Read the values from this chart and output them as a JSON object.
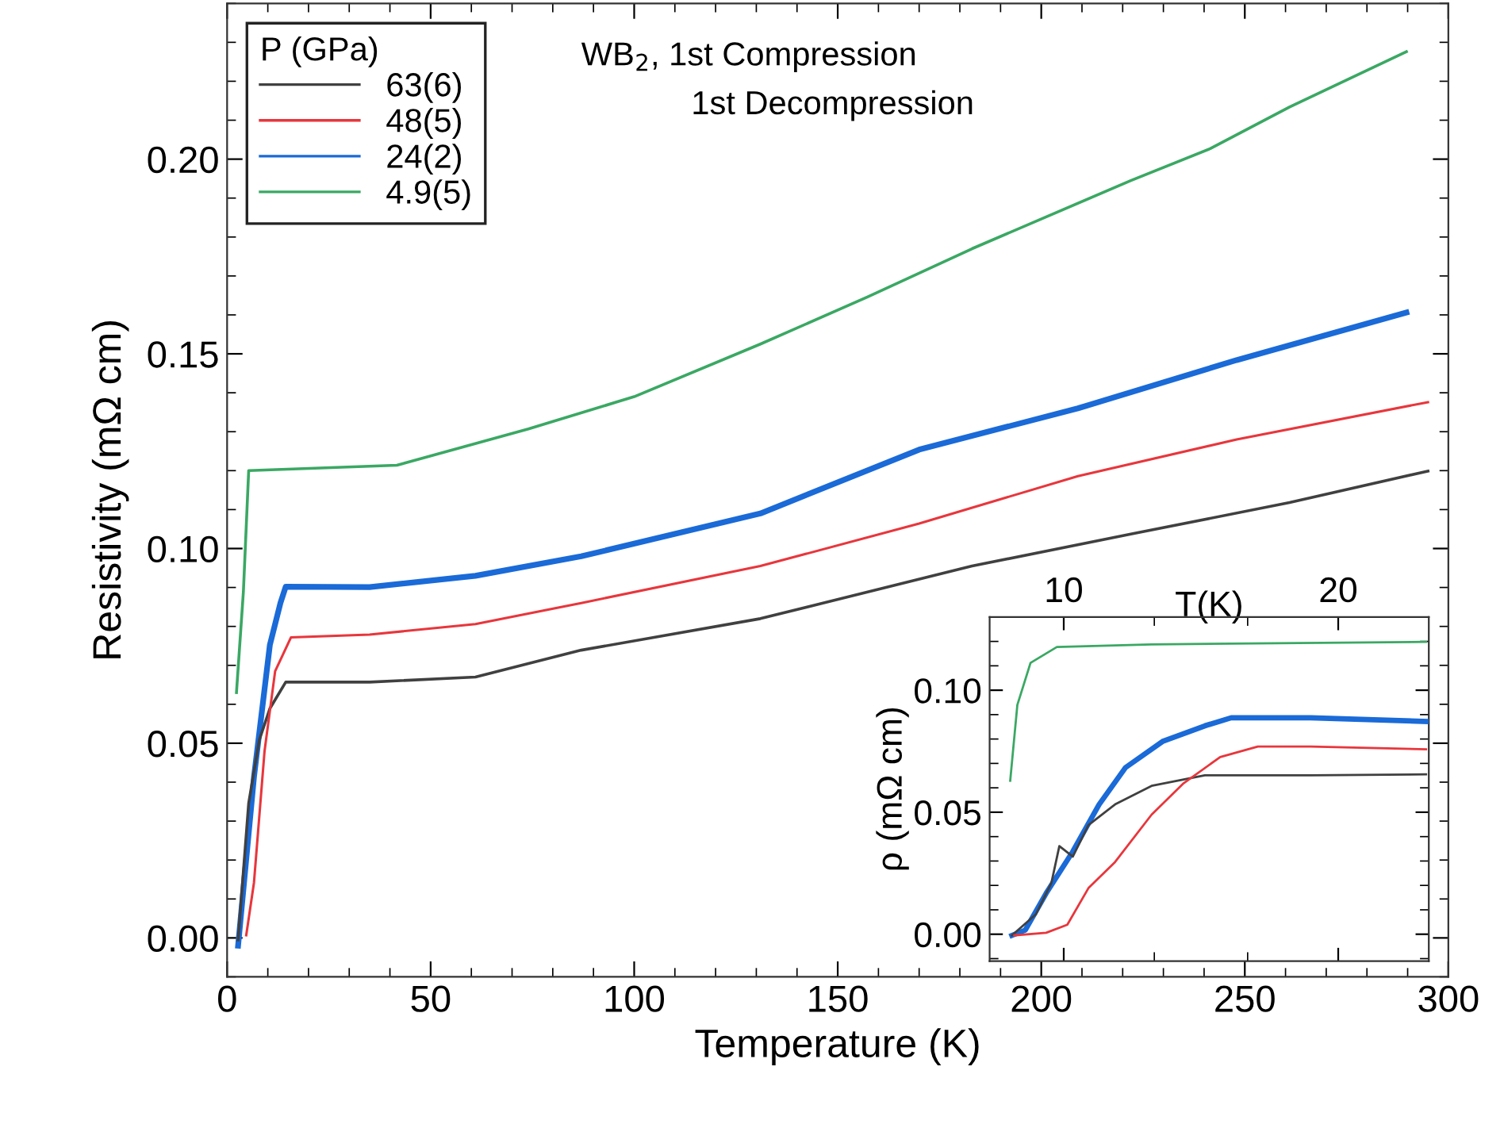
{
  "chart_data": [
    {
      "type": "line",
      "xlabel": "Temperature (K)",
      "ylabel": "Resistivity (mΩ cm)",
      "legend_title": "P (GPa)",
      "legend": "top left",
      "grid": false,
      "line_style": "solid",
      "marker": "none",
      "annotations": [
        "WB$_{2}$, 1st Compression",
        "1st Decompression"
      ],
      "xlim": [
        0,
        300
      ],
      "ylim": [
        -0.01,
        0.24
      ],
      "xticks": [
        0,
        {
          "value": 10,
          "label": null
        },
        {
          "value": 20,
          "label": null
        },
        {
          "value": 30,
          "label": null
        },
        {
          "value": 40,
          "label": null
        },
        50,
        {
          "value": 60,
          "label": null
        },
        {
          "value": 70,
          "label": null
        },
        {
          "value": 80,
          "label": null
        },
        {
          "value": 90,
          "label": null
        },
        100,
        {
          "value": 110,
          "label": null
        },
        {
          "value": 120,
          "label": null
        },
        {
          "value": 130,
          "label": null
        },
        {
          "value": 140,
          "label": null
        },
        150,
        {
          "value": 160,
          "label": null
        },
        {
          "value": 170,
          "label": null
        },
        {
          "value": 180,
          "label": null
        },
        {
          "value": 190,
          "label": null
        },
        200,
        {
          "value": 210,
          "label": null
        },
        {
          "value": 220,
          "label": null
        },
        {
          "value": 230,
          "label": null
        },
        {
          "value": 240,
          "label": null
        },
        250,
        {
          "value": 260,
          "label": null
        },
        {
          "value": 270,
          "label": null
        },
        {
          "value": 280,
          "label": null
        },
        {
          "value": 290,
          "label": null
        },
        300
      ],
      "yticks": [
        {
          "value": -0.01,
          "label": null
        },
        {
          "value": 0.0,
          "label": "0.00"
        },
        {
          "value": 0.01,
          "label": null
        },
        {
          "value": 0.02,
          "label": null
        },
        {
          "value": 0.03,
          "label": null
        },
        {
          "value": 0.04,
          "label": null
        },
        {
          "value": 0.05,
          "label": "0.05"
        },
        {
          "value": 0.06,
          "label": null
        },
        {
          "value": 0.07,
          "label": null
        },
        {
          "value": 0.08,
          "label": null
        },
        {
          "value": 0.09,
          "label": null
        },
        {
          "value": 0.1,
          "label": "0.10"
        },
        {
          "value": 0.11,
          "label": null
        },
        {
          "value": 0.12,
          "label": null
        },
        {
          "value": 0.13,
          "label": null
        },
        {
          "value": 0.14,
          "label": null
        },
        {
          "value": 0.15,
          "label": "0.15"
        },
        {
          "value": 0.16,
          "label": null
        },
        {
          "value": 0.17,
          "label": null
        },
        {
          "value": 0.18,
          "label": null
        },
        {
          "value": 0.19,
          "label": null
        },
        {
          "value": 0.2,
          "label": "0.20"
        },
        {
          "value": 0.21,
          "label": null
        },
        {
          "value": 0.22,
          "label": null
        },
        {
          "value": 0.23,
          "label": null
        },
        {
          "value": 0.24,
          "label": null
        }
      ],
      "series": [
        {
          "name": "63(6)",
          "color": "#404040",
          "x": [
            2.7,
            5.3,
            7.9,
            10.5,
            14.4,
            35,
            61,
            87,
            131,
            183,
            222,
            261,
            295
          ],
          "values": [
            -0.0005,
            0.0346,
            0.0508,
            0.0589,
            0.0657,
            0.0657,
            0.067,
            0.0739,
            0.082,
            0.0955,
            0.1037,
            0.1118,
            0.1199
          ]
        },
        {
          "name": "48(5)",
          "color": "#e8363c",
          "x": [
            4.7,
            6.6,
            9.2,
            11.8,
            15.7,
            35,
            61,
            87,
            131,
            170,
            209,
            248,
            295
          ],
          "values": [
            0.0007,
            0.0142,
            0.048,
            0.0685,
            0.0772,
            0.0779,
            0.0806,
            0.086,
            0.0955,
            0.1064,
            0.1186,
            0.128,
            0.1376
          ]
        },
        {
          "name": "24(2)",
          "color": "#1a6ad8",
          "x": [
            2.7,
            6.6,
            10.5,
            13.1,
            14.4,
            35,
            61,
            87,
            131,
            170,
            209,
            248,
            289.7
          ],
          "values": [
            -0.002,
            0.0413,
            0.0752,
            0.086,
            0.0902,
            0.0901,
            0.093,
            0.098,
            0.109,
            0.1254,
            0.136,
            0.1484,
            0.1606
          ]
        },
        {
          "name": "4.9(5)",
          "color": "#3aa863",
          "x": [
            2.3,
            4.0,
            5.3,
            41.7,
            74,
            100,
            131,
            157.3,
            183,
            222,
            241.5,
            261,
            289.7
          ],
          "values": [
            0.063,
            0.0889,
            0.12,
            0.1214,
            0.1307,
            0.139,
            0.1525,
            0.1646,
            0.177,
            0.1945,
            0.2027,
            0.2134,
            0.2276
          ]
        }
      ]
    },
    {
      "type": "line",
      "xlabel": "T(K)",
      "ylabel": "ρ (mΩ cm)",
      "grid": false,
      "line_style": "solid",
      "marker": "none",
      "xlim": [
        7.3,
        23.3
      ],
      "ylim": [
        -0.011,
        0.13
      ],
      "xticks": [
        10,
        {
          "value": 13.3,
          "label": null
        },
        {
          "value": 16.7,
          "label": null
        },
        20
      ],
      "yticks": [
        {
          "value": -0.01,
          "label": null
        },
        {
          "value": 0.0,
          "label": "0.00"
        },
        {
          "value": 0.01,
          "label": null
        },
        {
          "value": 0.02,
          "label": null
        },
        {
          "value": 0.03,
          "label": null
        },
        {
          "value": 0.04,
          "label": null
        },
        {
          "value": 0.05,
          "label": "0.05"
        },
        {
          "value": 0.06,
          "label": null
        },
        {
          "value": 0.07,
          "label": null
        },
        {
          "value": 0.08,
          "label": null
        },
        {
          "value": 0.09,
          "label": null
        },
        {
          "value": 0.1,
          "label": "0.10"
        },
        {
          "value": 0.11,
          "label": null
        },
        {
          "value": 0.12,
          "label": null
        },
        {
          "value": 0.13,
          "label": null
        }
      ],
      "series": [
        {
          "color": "#404040",
          "x": [
            8.11,
            8.98,
            9.55,
            9.84,
            10.33,
            10.9,
            11.87,
            13.2,
            15.14,
            19.0,
            23.2
          ],
          "values": [
            -0.0005,
            0.0081,
            0.021,
            0.0361,
            0.0318,
            0.0447,
            0.0532,
            0.0608,
            0.0651,
            0.0651,
            0.0655
          ]
        },
        {
          "color": "#e8363c",
          "x": [
            8.2,
            9.36,
            10.13,
            10.9,
            11.87,
            13.2,
            14.37,
            15.7,
            17.07,
            19.0,
            23.2
          ],
          "values": [
            -0.0005,
            0.0006,
            0.0039,
            0.0189,
            0.0296,
            0.049,
            0.0619,
            0.0726,
            0.0769,
            0.0769,
            0.0758
          ]
        },
        {
          "color": "#1a6ad8",
          "x": [
            8.11,
            8.6,
            9.36,
            10.33,
            11.29,
            12.25,
            13.6,
            15.14,
            16.1,
            19.0,
            23.2
          ],
          "values": [
            -0.0005,
            0.0017,
            0.0168,
            0.0339,
            0.0532,
            0.0683,
            0.079,
            0.0854,
            0.0887,
            0.0887,
            0.0872
          ]
        },
        {
          "color": "#3aa863",
          "x": [
            8.05,
            8.31,
            8.79,
            9.75,
            13.2,
            23.2
          ],
          "values": [
            0.0629,
            0.094,
            0.1112,
            0.1177,
            0.1188,
            0.1198
          ]
        }
      ]
    }
  ]
}
